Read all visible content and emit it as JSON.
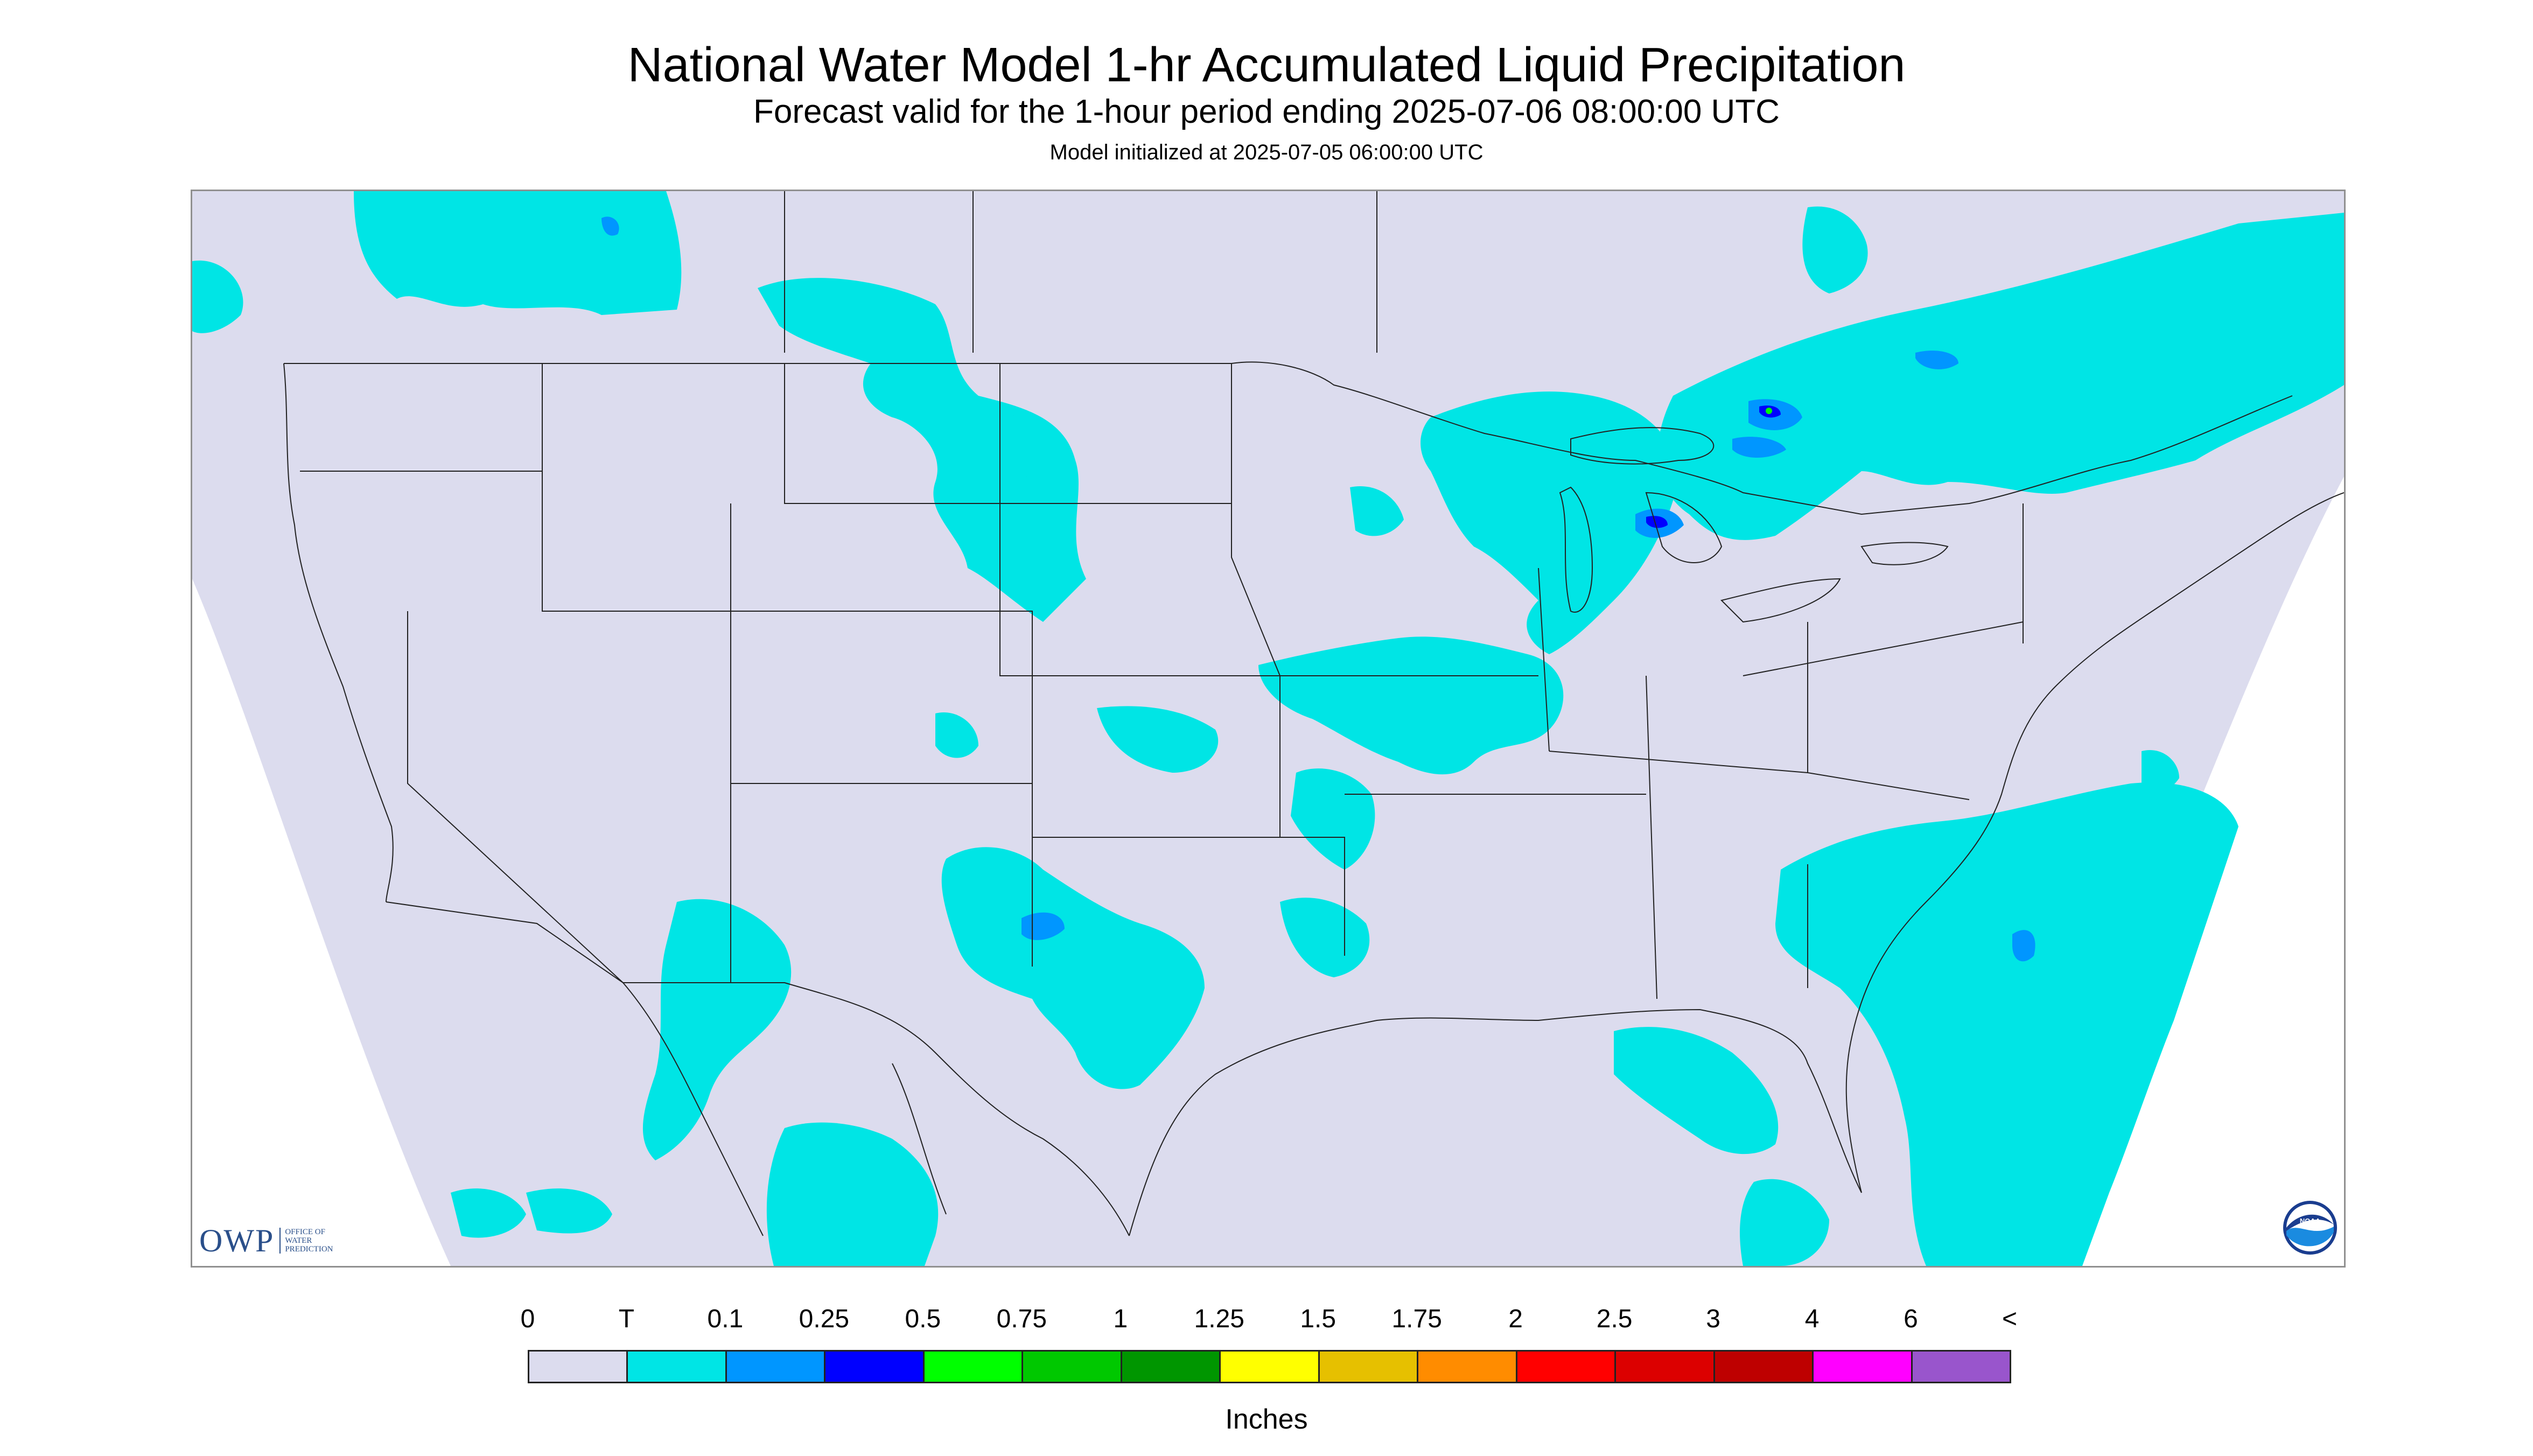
{
  "title": "National Water Model 1-hr Accumulated Liquid Precipitation",
  "subtitle": "Forecast valid for the 1-hour period ending 2025-07-06 08:00:00 UTC",
  "init_text": "Model initialized at 2025-07-05 06:00:00 UTC",
  "logo": {
    "owp_abbrev": "OWP",
    "owp_full": "OFFICE OF\nWATER\nPREDICTION",
    "noaa_text": "NOAA"
  },
  "legend": {
    "units": "Inches",
    "labels": [
      "0",
      "T",
      "0.1",
      "0.25",
      "0.5",
      "0.75",
      "1",
      "1.25",
      "1.5",
      "1.75",
      "2",
      "2.5",
      "3",
      "4",
      "6",
      "<"
    ],
    "colors": [
      "#dcdcee",
      "#00e5e5",
      "#0096ff",
      "#0000ff",
      "#00ff00",
      "#00c800",
      "#009600",
      "#ffff00",
      "#e6c000",
      "#ff8c00",
      "#ff0000",
      "#dc0000",
      "#be0000",
      "#ff00ff",
      "#9955cc"
    ]
  },
  "colors": {
    "no_data": "#ffffff",
    "zero_precip": "#dcdcee",
    "trace": "#00e5e5",
    "light": "#0096ff",
    "moderate": "#0000ff",
    "heavier": "#00ff00",
    "boundary": "#222222"
  }
}
